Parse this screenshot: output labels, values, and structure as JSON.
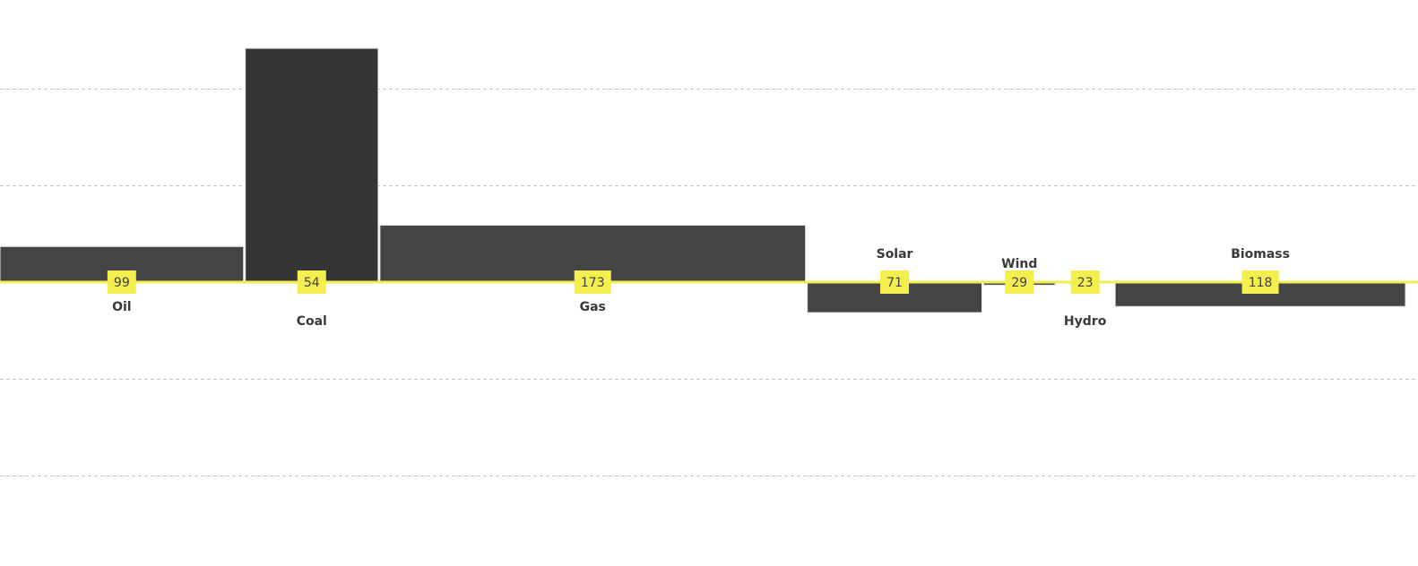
{
  "chart_data": {
    "type": "bar",
    "variant": "variable-width diverging bars",
    "title": "",
    "xlabel": "",
    "ylabel": "",
    "grid": true,
    "ylim": [
      -200,
      240
    ],
    "categories": [
      "Oil",
      "Coal",
      "Gas",
      "Solar",
      "Wind",
      "Hydro",
      "Biomass"
    ],
    "widths": [
      99,
      54,
      173,
      71,
      29,
      23,
      118
    ],
    "values": [
      35,
      230,
      56,
      -30,
      -3,
      0,
      -24
    ],
    "labels": [
      "99",
      "54",
      "173",
      "71",
      "29",
      "23",
      "118"
    ],
    "colors": {
      "bar": "#444444",
      "bar_emphasis": "#353535",
      "baseline": "#f2ef4f",
      "badge": "#f2ef4f",
      "label": "#3a3a3a",
      "grid": "#c4c4c4"
    }
  }
}
